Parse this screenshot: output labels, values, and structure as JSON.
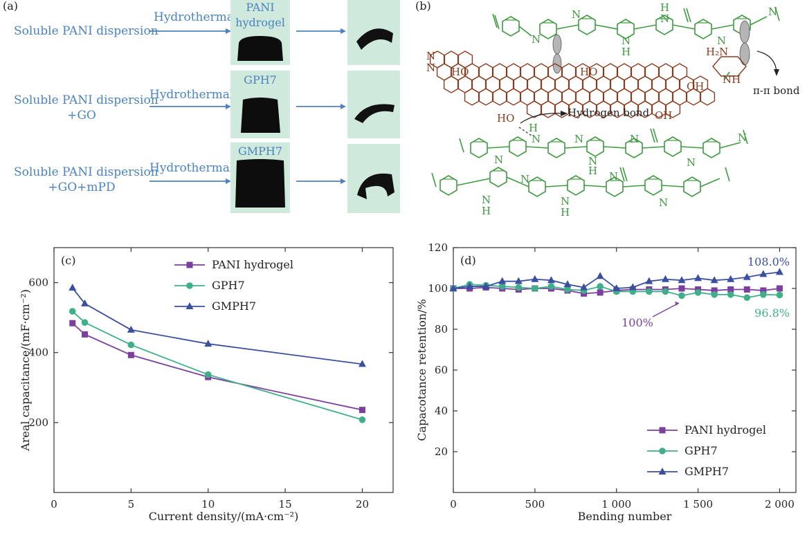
{
  "panel_a": {
    "letter": "(a)",
    "rows": [
      {
        "input_line1": "Soluble PANI dispersion",
        "input_line2": "",
        "process": "Hydrothermal",
        "gel_label_line1": "PANI",
        "gel_label_line2": "hydrogel"
      },
      {
        "input_line1": "Soluble PANI dispersion",
        "input_line2": "+GO",
        "process": "Hydrothermal",
        "gel_label_line1": "GPH7",
        "gel_label_line2": ""
      },
      {
        "input_line1": "Soluble PANI dispersion",
        "input_line2": "+GO+mPD",
        "process": "Hydrothermal",
        "gel_label_line1": "GMPH7",
        "gel_label_line2": ""
      }
    ]
  },
  "panel_b": {
    "letter": "(b)",
    "labels": {
      "pi_bond": "π-π bond",
      "hydrogen_bond": "Hydrogen bond",
      "ho1": "HO",
      "ho2": "HO",
      "ho3": "HO",
      "oh1": "OH",
      "oh2": "OH",
      "nh": "NH",
      "h2n": "H₂N",
      "n1": "N",
      "n2": "N",
      "top_n1": "N",
      "top_n2": "N",
      "top_nh_n": "N",
      "top_nh_h": "H",
      "top_h": "H",
      "top_n3": "N",
      "top_n4": "N",
      "top_n5": "N",
      "bot_h": "H",
      "bot_n1": "N",
      "bot_n2": "N",
      "bot_n3": "N",
      "bot_n4": "N",
      "bot_nh_n": "N",
      "bot_nh_h": "H",
      "bot_n5": "N",
      "bot_n6": "N",
      "bot2_n1": "N",
      "bot2_h1": "H",
      "bot2_n2": "N",
      "bot2_h2": "H",
      "bot2_n3": "N",
      "bot2_n4": "N",
      "bot2_n5": "N"
    }
  },
  "colors": {
    "pani": "#7b3f9e",
    "gph7": "#3fae8a",
    "gmph7": "#3a4fa0",
    "flow": "#4a83c0"
  },
  "chart_data": [
    {
      "type": "line",
      "panel": "(c)",
      "xlabel": "Current density/(mA·cm⁻²)",
      "ylabel": "Areal capacitance/(mF·cm⁻²)",
      "xlim": [
        0,
        22
      ],
      "ylim": [
        0,
        700
      ],
      "xticks": [
        0,
        5,
        10,
        15,
        20
      ],
      "yticks": [
        200,
        400,
        600
      ],
      "legend_position": "top-right",
      "series": [
        {
          "name": "PANI hydrogel",
          "marker": "square",
          "x": [
            1.2,
            2,
            5,
            10,
            20
          ],
          "y": [
            484,
            452,
            393,
            330,
            236
          ]
        },
        {
          "name": "GPH7",
          "marker": "circle",
          "x": [
            1.2,
            2,
            5,
            10,
            20
          ],
          "y": [
            518,
            486,
            422,
            337,
            208
          ]
        },
        {
          "name": "GMPH7",
          "marker": "triangle",
          "x": [
            1.2,
            2,
            5,
            10,
            20
          ],
          "y": [
            585,
            540,
            465,
            425,
            367
          ]
        }
      ]
    },
    {
      "type": "line",
      "panel": "(d)",
      "xlabel": "Bending number",
      "ylabel": "Capacotance retention/%",
      "xlim": [
        0,
        2100
      ],
      "ylim": [
        0,
        120
      ],
      "xticks": [
        0,
        500,
        1000,
        1500,
        2000
      ],
      "xtick_labels": [
        "0",
        "500",
        "1 000",
        "1 500",
        "2 000"
      ],
      "yticks": [
        20,
        40,
        60,
        80,
        100,
        120
      ],
      "legend_position": "bottom-right",
      "annotations": [
        "108.0%",
        "100%",
        "96.8%"
      ],
      "series": [
        {
          "name": "PANI hydrogel",
          "marker": "square",
          "x": [
            0,
            100,
            200,
            300,
            400,
            500,
            600,
            700,
            800,
            900,
            1000,
            1100,
            1200,
            1300,
            1400,
            1500,
            1600,
            1700,
            1800,
            1900,
            2000
          ],
          "y": [
            100,
            100,
            100.5,
            100,
            99.5,
            100,
            100,
            99,
            97.5,
            98,
            99,
            99.5,
            99.5,
            99.5,
            100,
            99.5,
            99,
            99.5,
            99.5,
            99,
            100
          ]
        },
        {
          "name": "GPH7",
          "marker": "circle",
          "x": [
            0,
            100,
            200,
            300,
            400,
            500,
            600,
            700,
            800,
            900,
            1000,
            1100,
            1200,
            1300,
            1400,
            1500,
            1600,
            1700,
            1800,
            1900,
            2000
          ],
          "y": [
            100,
            102,
            101.5,
            101,
            100.5,
            100,
            101,
            99.5,
            99,
            101,
            98.5,
            98.5,
            98.5,
            98.5,
            96.5,
            98,
            97,
            97,
            95.5,
            97,
            96.8
          ]
        },
        {
          "name": "GMPH7",
          "marker": "triangle",
          "x": [
            0,
            100,
            200,
            300,
            400,
            500,
            600,
            700,
            800,
            900,
            1000,
            1100,
            1200,
            1300,
            1400,
            1500,
            1600,
            1700,
            1800,
            1900,
            2000
          ],
          "y": [
            100,
            101,
            101,
            103.5,
            103.5,
            104.5,
            104,
            102,
            100.5,
            106,
            100,
            100.5,
            103.5,
            104.5,
            104,
            105,
            104,
            104.5,
            105.5,
            107,
            108
          ]
        }
      ]
    }
  ]
}
